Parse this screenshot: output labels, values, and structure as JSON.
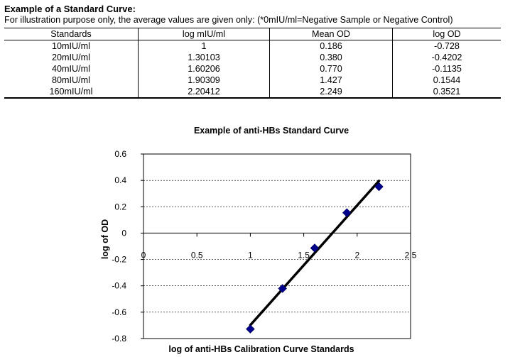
{
  "doc": {
    "heading": "Example of a Standard Curve:",
    "subheading": "For illustration purpose only, the average values are given only: (*0mIU/ml=Negative Sample or Negative Control)"
  },
  "table": {
    "headers": [
      "Standards",
      "log mIU/ml",
      "Mean OD",
      "log OD"
    ],
    "rows": [
      [
        "10mIU/ml",
        "1",
        "0.186",
        "-0.728"
      ],
      [
        "20mIU/ml",
        "1.30103",
        "0.380",
        "-0.4202"
      ],
      [
        "40mIU/ml",
        "1.60206",
        "0.770",
        "-0.1135"
      ],
      [
        "80mIU/ml",
        "1.90309",
        "1.427",
        "0.1544"
      ],
      [
        "160mIU/ml",
        "2.20412",
        "2.249",
        "0.3521"
      ]
    ]
  },
  "chart_data": {
    "type": "scatter",
    "title": "Example of anti-HBs Standard Curve",
    "xlabel": "log of anti-HBs Calibration Curve Standards",
    "ylabel": "log of OD",
    "xlim": [
      0,
      2.5
    ],
    "ylim": [
      -0.8,
      0.6
    ],
    "xticks": [
      0,
      0.5,
      1,
      1.5,
      2,
      2.5
    ],
    "xtick_labels": [
      "0",
      "0.5",
      "1",
      "1.5",
      "2",
      "2.5"
    ],
    "yticks": [
      0.6,
      0.4,
      0.2,
      0,
      -0.2,
      -0.4,
      -0.6,
      -0.8
    ],
    "ytick_labels": [
      "0.6",
      "0.4",
      "0.2",
      "0",
      "-0.2",
      "-0.4",
      "-0.6",
      "-0.8"
    ],
    "grid": "horizontal dashed",
    "x": [
      1,
      1.30103,
      1.60206,
      1.90309,
      2.20412
    ],
    "y": [
      -0.728,
      -0.4202,
      -0.1135,
      0.1544,
      0.3521
    ],
    "trendline": {
      "type": "linear",
      "x_range": [
        1,
        2.20412
      ]
    },
    "marker": "diamond",
    "marker_color": "#00008b",
    "line_color": "#000000"
  }
}
